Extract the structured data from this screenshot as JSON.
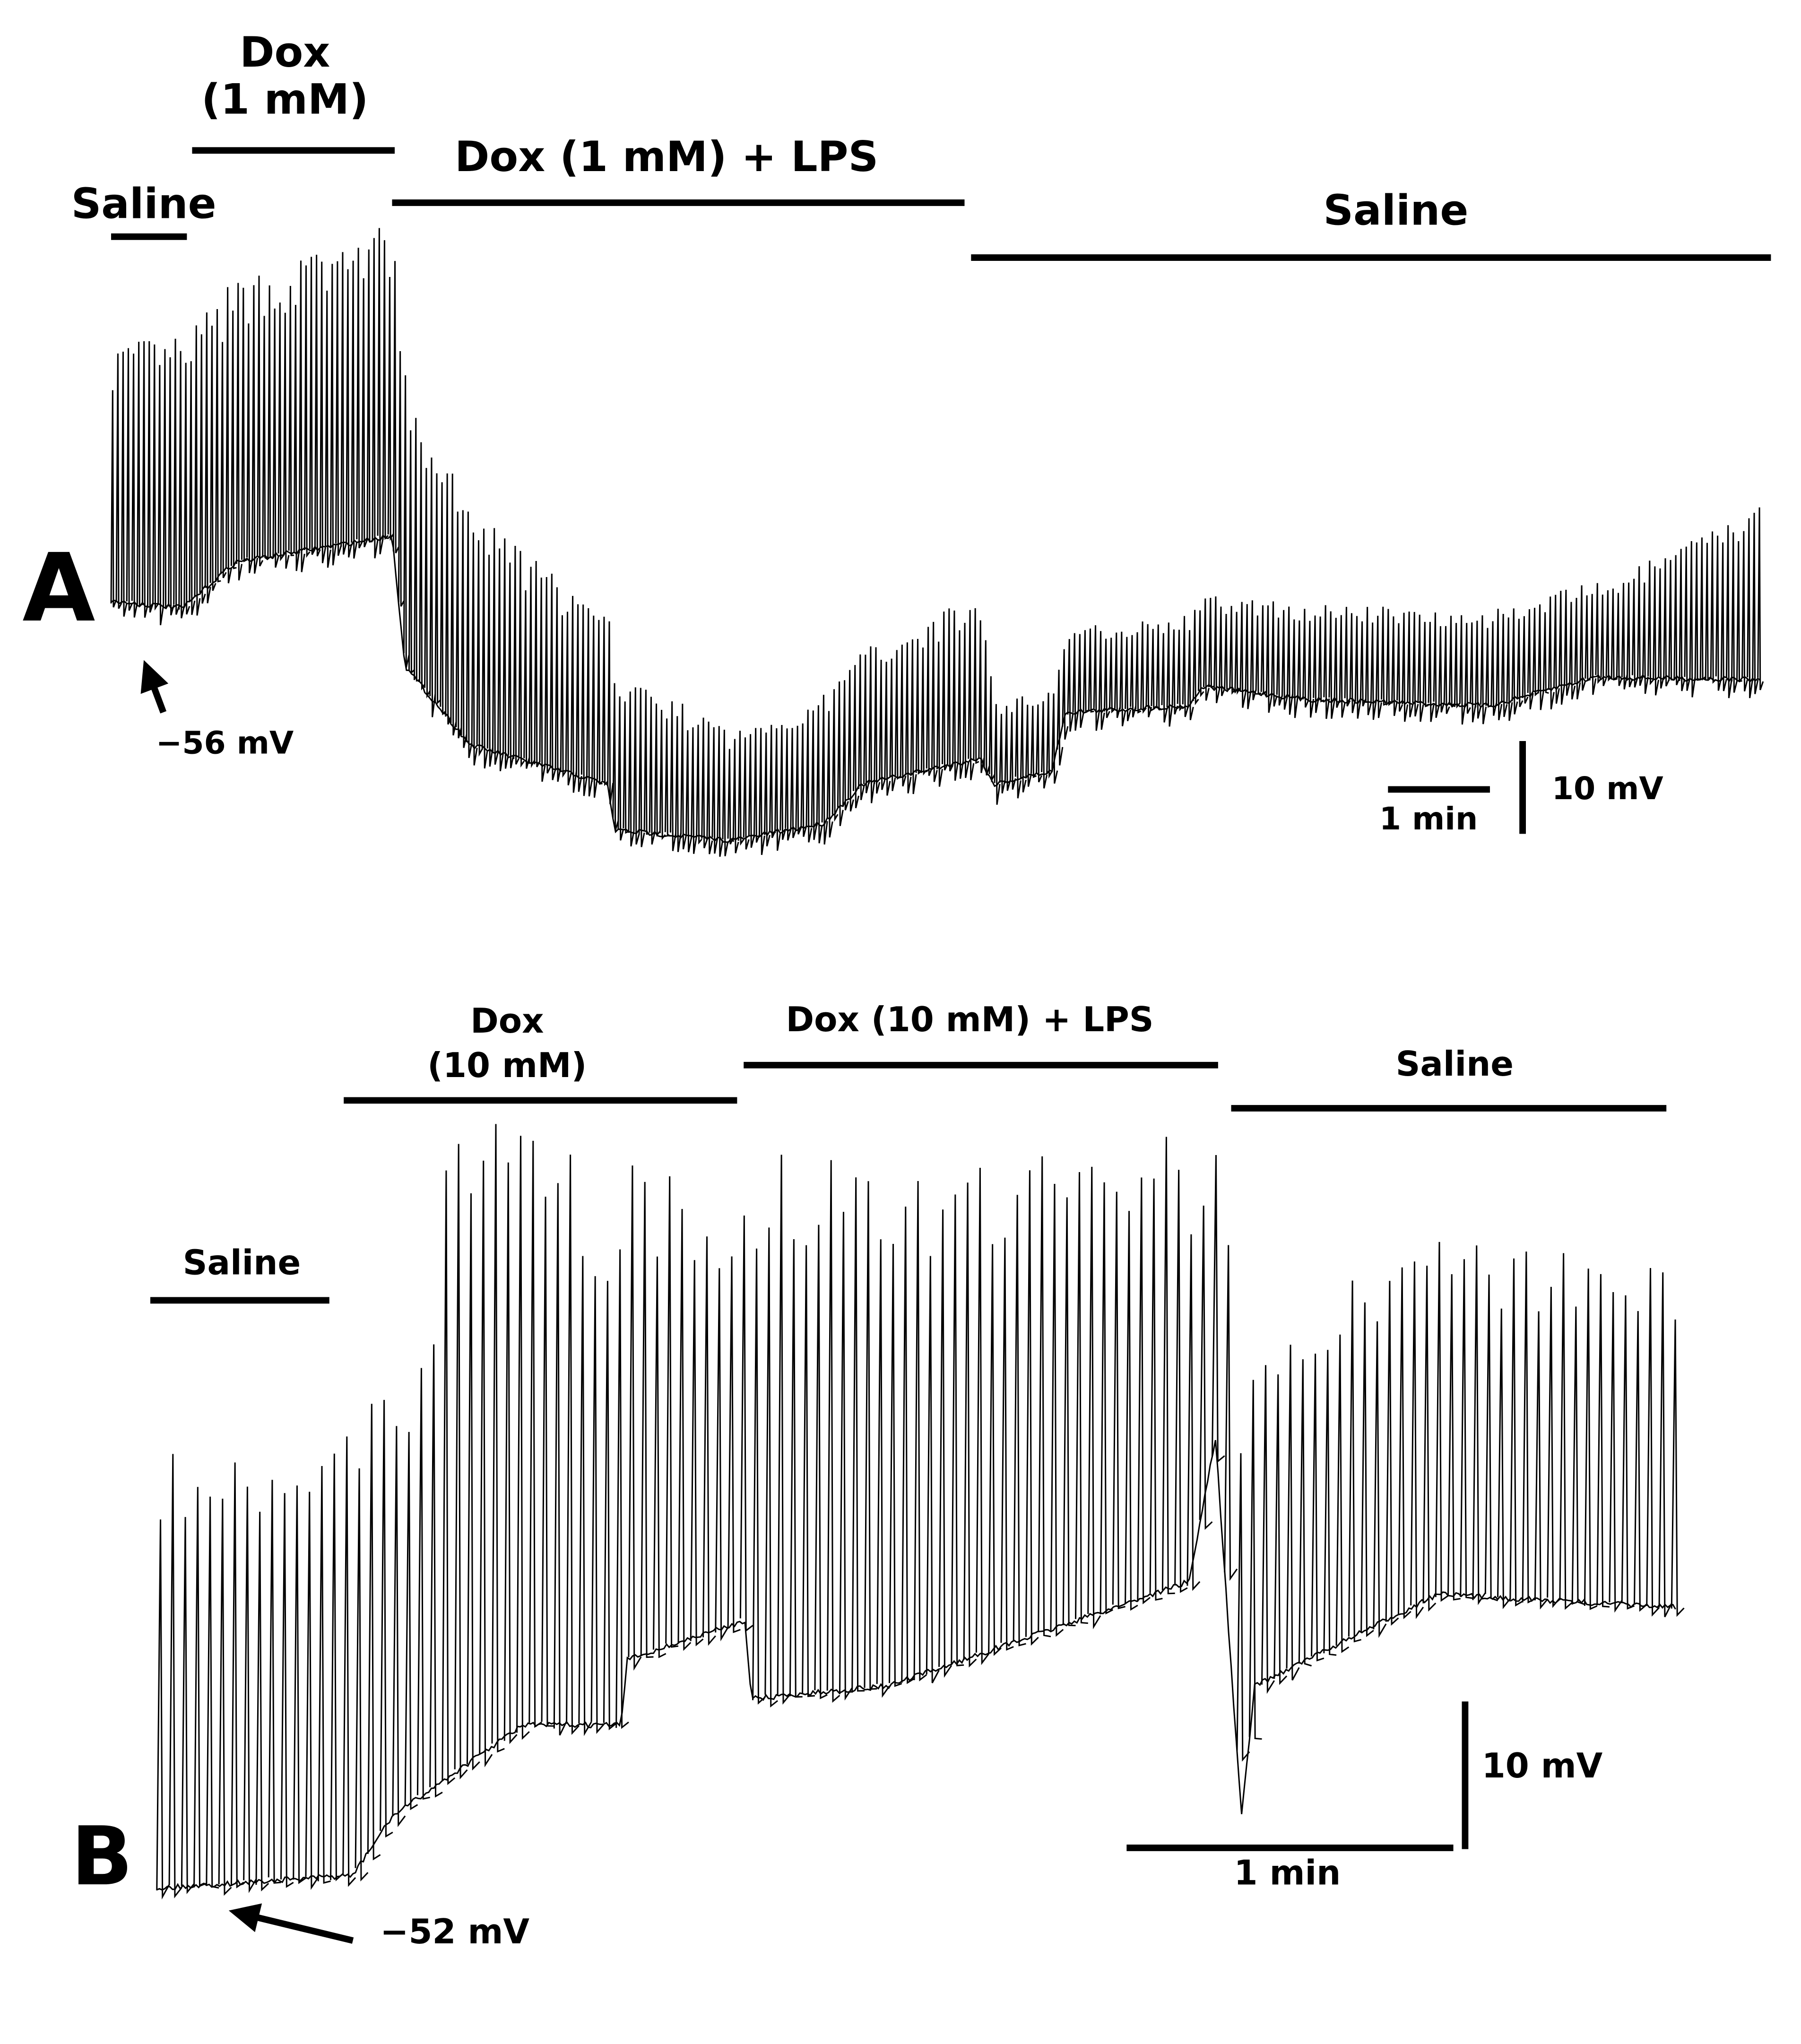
{
  "panels": [
    {
      "label": "A",
      "bars": [
        {
          "lines": [
            "Saline"
          ]
        },
        {
          "lines": [
            "Dox",
            "(1 mM)"
          ]
        },
        {
          "lines": [
            "Dox (1 mM) + LPS"
          ]
        },
        {
          "lines": [
            "Saline"
          ]
        }
      ],
      "annotation": "−56 mV",
      "scale": {
        "time": "1 min",
        "voltage": "10 mV"
      }
    },
    {
      "label": "B",
      "bars": [
        {
          "lines": [
            "Saline"
          ]
        },
        {
          "lines": [
            "Dox",
            "(10 mM)"
          ]
        },
        {
          "lines": [
            "Dox (10 mM) + LPS"
          ]
        },
        {
          "lines": [
            "Saline"
          ]
        }
      ],
      "annotation": "−52 mV",
      "scale": {
        "time": "1 min",
        "voltage": "10 mV"
      }
    }
  ]
}
